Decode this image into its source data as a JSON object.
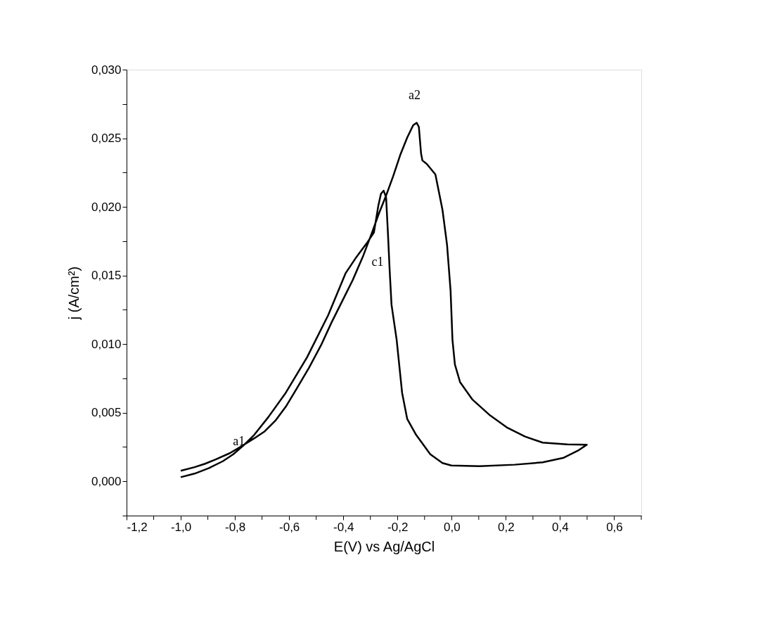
{
  "chart_data": {
    "type": "line",
    "xlabel": "E(V) vs Ag/AgCl",
    "ylabel": "j (A/cm²)",
    "x": [
      -1.0,
      -0.949,
      -0.897,
      -0.845,
      -0.806,
      -0.768,
      -0.729,
      -0.677,
      -0.612,
      -0.534,
      -0.456,
      -0.391,
      -0.352,
      -0.313,
      -0.287,
      -0.271,
      -0.261,
      -0.251,
      -0.242,
      -0.235,
      -0.229,
      -0.222,
      -0.203,
      -0.183,
      -0.164,
      -0.131,
      -0.079,
      -0.034,
      -0.001,
      0.103,
      0.232,
      0.336,
      0.414,
      0.466,
      0.499,
      0.427,
      0.336,
      0.271,
      0.206,
      0.142,
      0.077,
      0.031,
      0.012,
      0.003,
      -0.004,
      -0.017,
      -0.034,
      -0.06,
      -0.092,
      -0.108,
      -0.113,
      -0.121,
      -0.129,
      -0.142,
      -0.164,
      -0.19,
      -0.216,
      -0.242,
      -0.268,
      -0.294,
      -0.326,
      -0.365,
      -0.404,
      -0.443,
      -0.482,
      -0.527,
      -0.573,
      -0.612,
      -0.651,
      -0.69,
      -0.729,
      -0.781,
      -0.819,
      -0.871,
      -0.91,
      -0.949,
      -1.0
    ],
    "series": [
      {
        "color": "#000000",
        "values": [
          0.0003,
          0.00056,
          0.00095,
          0.00146,
          0.00197,
          0.00262,
          0.00338,
          0.00467,
          0.00646,
          0.00903,
          0.0121,
          0.01518,
          0.01633,
          0.01736,
          0.01813,
          0.02005,
          0.02095,
          0.02118,
          0.02069,
          0.018,
          0.01544,
          0.01287,
          0.01031,
          0.00646,
          0.00454,
          0.00338,
          0.00197,
          0.00133,
          0.00115,
          0.0011,
          0.00121,
          0.00138,
          0.00172,
          0.00223,
          0.00267,
          0.00269,
          0.00282,
          0.00326,
          0.0039,
          0.0048,
          0.00595,
          0.00723,
          0.00851,
          0.01031,
          0.0139,
          0.01723,
          0.0198,
          0.02236,
          0.02313,
          0.02338,
          0.0239,
          0.02582,
          0.02613,
          0.02595,
          0.02505,
          0.02377,
          0.02223,
          0.02082,
          0.01954,
          0.01813,
          0.01646,
          0.01467,
          0.01313,
          0.01159,
          0.00992,
          0.00826,
          0.00672,
          0.00544,
          0.00441,
          0.00364,
          0.00313,
          0.00249,
          0.00205,
          0.00159,
          0.00128,
          0.00103,
          0.00077
        ]
      }
    ],
    "xlim": [
      -1.2,
      0.7
    ],
    "ylim": [
      -0.0025,
      0.03
    ],
    "xticks": [
      {
        "value": -1.2,
        "label": "-1,2"
      },
      {
        "value": -1.1,
        "label": null
      },
      {
        "value": -1.0,
        "label": "-1,0"
      },
      {
        "value": -0.9,
        "label": null
      },
      {
        "value": -0.8,
        "label": "-0,8"
      },
      {
        "value": -0.7,
        "label": null
      },
      {
        "value": -0.6,
        "label": "-0,6"
      },
      {
        "value": -0.5,
        "label": null
      },
      {
        "value": -0.4,
        "label": "-0,4"
      },
      {
        "value": -0.3,
        "label": null
      },
      {
        "value": -0.2,
        "label": "-0,2"
      },
      {
        "value": -0.1,
        "label": null
      },
      {
        "value": 0.0,
        "label": "0,0"
      },
      {
        "value": 0.1,
        "label": null
      },
      {
        "value": 0.2,
        "label": "0,2"
      },
      {
        "value": 0.3,
        "label": null
      },
      {
        "value": 0.4,
        "label": "0,4"
      },
      {
        "value": 0.5,
        "label": null
      },
      {
        "value": 0.6,
        "label": "0,6"
      },
      {
        "value": 0.7,
        "label": null
      }
    ],
    "yticks": [
      {
        "value": -0.0025,
        "label": null
      },
      {
        "value": 0.0,
        "label": "0,000"
      },
      {
        "value": 0.0025,
        "label": null
      },
      {
        "value": 0.005,
        "label": "0,005"
      },
      {
        "value": 0.0075,
        "label": null
      },
      {
        "value": 0.01,
        "label": "0,010"
      },
      {
        "value": 0.0125,
        "label": null
      },
      {
        "value": 0.015,
        "label": "0,015"
      },
      {
        "value": 0.0175,
        "label": null
      },
      {
        "value": 0.02,
        "label": "0,020"
      },
      {
        "value": 0.0225,
        "label": null
      },
      {
        "value": 0.025,
        "label": "0,025"
      },
      {
        "value": 0.0275,
        "label": null
      },
      {
        "value": 0.03,
        "label": "0,030"
      }
    ],
    "annotations": [
      {
        "text": "a1",
        "x": -0.806,
        "y": 0.00197
      },
      {
        "text": "a2",
        "x": -0.129,
        "y": 0.02613
      },
      {
        "text": "c1",
        "x": -0.229,
        "y": 0.01544
      }
    ],
    "grid": false,
    "marker": "none",
    "line_style": "solid"
  }
}
